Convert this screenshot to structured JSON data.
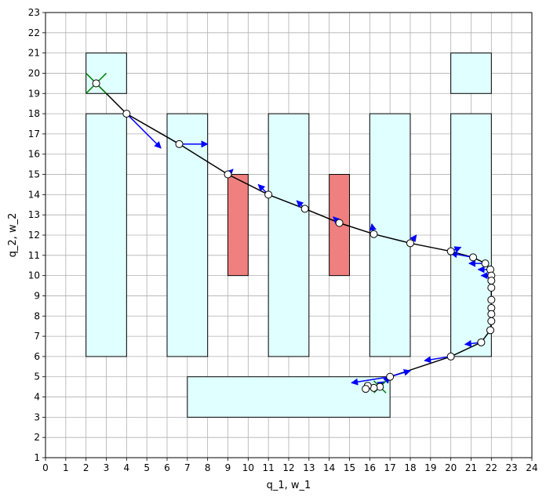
{
  "chart_data": {
    "type": "scatter",
    "title": "",
    "xlabel": "q_1, w_1",
    "ylabel": "q_2, w_2",
    "xlim": [
      0,
      24
    ],
    "ylim": [
      1,
      23
    ],
    "grid": true,
    "xticks": [
      0,
      1,
      2,
      3,
      4,
      5,
      6,
      7,
      8,
      9,
      10,
      11,
      12,
      13,
      14,
      15,
      16,
      17,
      18,
      19,
      20,
      21,
      22,
      23,
      24
    ],
    "yticks": [
      1,
      2,
      3,
      4,
      5,
      6,
      7,
      8,
      9,
      10,
      11,
      12,
      13,
      14,
      15,
      16,
      17,
      18,
      19,
      20,
      21,
      22,
      23
    ],
    "colors": {
      "free_region": "#e0ffff",
      "obstacle": "#f08080",
      "path": "#000000",
      "arrow": "#0000ff",
      "cross": "#008000",
      "grid": "#b0b0b0"
    },
    "free_regions": [
      {
        "x": [
          2,
          4
        ],
        "y": [
          6,
          18
        ]
      },
      {
        "x": [
          2,
          4
        ],
        "y": [
          19,
          21
        ]
      },
      {
        "x": [
          6,
          8
        ],
        "y": [
          6,
          18
        ]
      },
      {
        "x": [
          11,
          13
        ],
        "y": [
          6,
          18
        ]
      },
      {
        "x": [
          16,
          18
        ],
        "y": [
          6,
          18
        ]
      },
      {
        "x": [
          20,
          22
        ],
        "y": [
          6,
          18
        ]
      },
      {
        "x": [
          20,
          22
        ],
        "y": [
          19,
          21
        ]
      },
      {
        "x": [
          7,
          17
        ],
        "y": [
          3,
          5
        ]
      }
    ],
    "obstacles": [
      {
        "x": [
          9,
          10
        ],
        "y": [
          10,
          15
        ]
      },
      {
        "x": [
          14,
          15
        ],
        "y": [
          10,
          15
        ]
      }
    ],
    "path": {
      "x": [
        2.5,
        4.0,
        6.6,
        9.0,
        11.0,
        12.8,
        14.5,
        16.2,
        18.0,
        20.0,
        21.1,
        21.7,
        21.95,
        22.0,
        22.0,
        22.0,
        22.0,
        22.0,
        22.0,
        22.0,
        21.95,
        21.5,
        20.0,
        17.0,
        16.5,
        16.2,
        15.9,
        15.8
      ],
      "y": [
        19.5,
        18.0,
        16.5,
        15.0,
        14.0,
        13.3,
        12.6,
        12.05,
        11.6,
        11.2,
        10.9,
        10.6,
        10.3,
        10.0,
        9.75,
        9.4,
        8.8,
        8.4,
        8.1,
        7.75,
        7.3,
        6.7,
        6.0,
        5.0,
        4.5,
        4.45,
        4.55,
        4.4
      ]
    },
    "arrows": [
      {
        "x": 4.0,
        "y": 18.0,
        "dx": 1.7,
        "dy": -1.7
      },
      {
        "x": 6.6,
        "y": 16.5,
        "dx": 1.4,
        "dy": 0.0
      },
      {
        "x": 9.0,
        "y": 15.0,
        "dx": 0.25,
        "dy": 0.25
      },
      {
        "x": 11.0,
        "y": 14.0,
        "dx": -0.5,
        "dy": 0.5
      },
      {
        "x": 12.8,
        "y": 13.3,
        "dx": -0.4,
        "dy": 0.4
      },
      {
        "x": 14.5,
        "y": 12.6,
        "dx": -0.3,
        "dy": 0.3
      },
      {
        "x": 16.2,
        "y": 12.05,
        "dx": -0.1,
        "dy": 0.5
      },
      {
        "x": 18.0,
        "y": 11.6,
        "dx": 0.3,
        "dy": 0.4
      },
      {
        "x": 20.0,
        "y": 11.2,
        "dx": 0.5,
        "dy": 0.2
      },
      {
        "x": 21.1,
        "y": 10.9,
        "dx": -1.1,
        "dy": 0.2
      },
      {
        "x": 21.7,
        "y": 10.6,
        "dx": -0.8,
        "dy": 0.0
      },
      {
        "x": 21.95,
        "y": 10.3,
        "dx": -0.6,
        "dy": 0.0
      },
      {
        "x": 22.0,
        "y": 10.0,
        "dx": -0.5,
        "dy": 0.0
      },
      {
        "x": 21.5,
        "y": 6.7,
        "dx": -0.8,
        "dy": -0.1
      },
      {
        "x": 20.0,
        "y": 6.0,
        "dx": -1.3,
        "dy": -0.2
      },
      {
        "x": 17.0,
        "y": 5.0,
        "dx": 1.0,
        "dy": 0.3
      },
      {
        "x": 17.0,
        "y": 5.0,
        "dx": -1.9,
        "dy": -0.3
      },
      {
        "x": 16.5,
        "y": 4.5,
        "dx": 0.5,
        "dy": 0.5
      },
      {
        "x": 16.2,
        "y": 4.45,
        "dx": 0.5,
        "dy": 0.3
      }
    ],
    "crosses": [
      {
        "x": 2.5,
        "y": 19.5,
        "size": 0.5
      },
      {
        "x": 16.5,
        "y": 4.5,
        "size": 0.3
      }
    ]
  }
}
